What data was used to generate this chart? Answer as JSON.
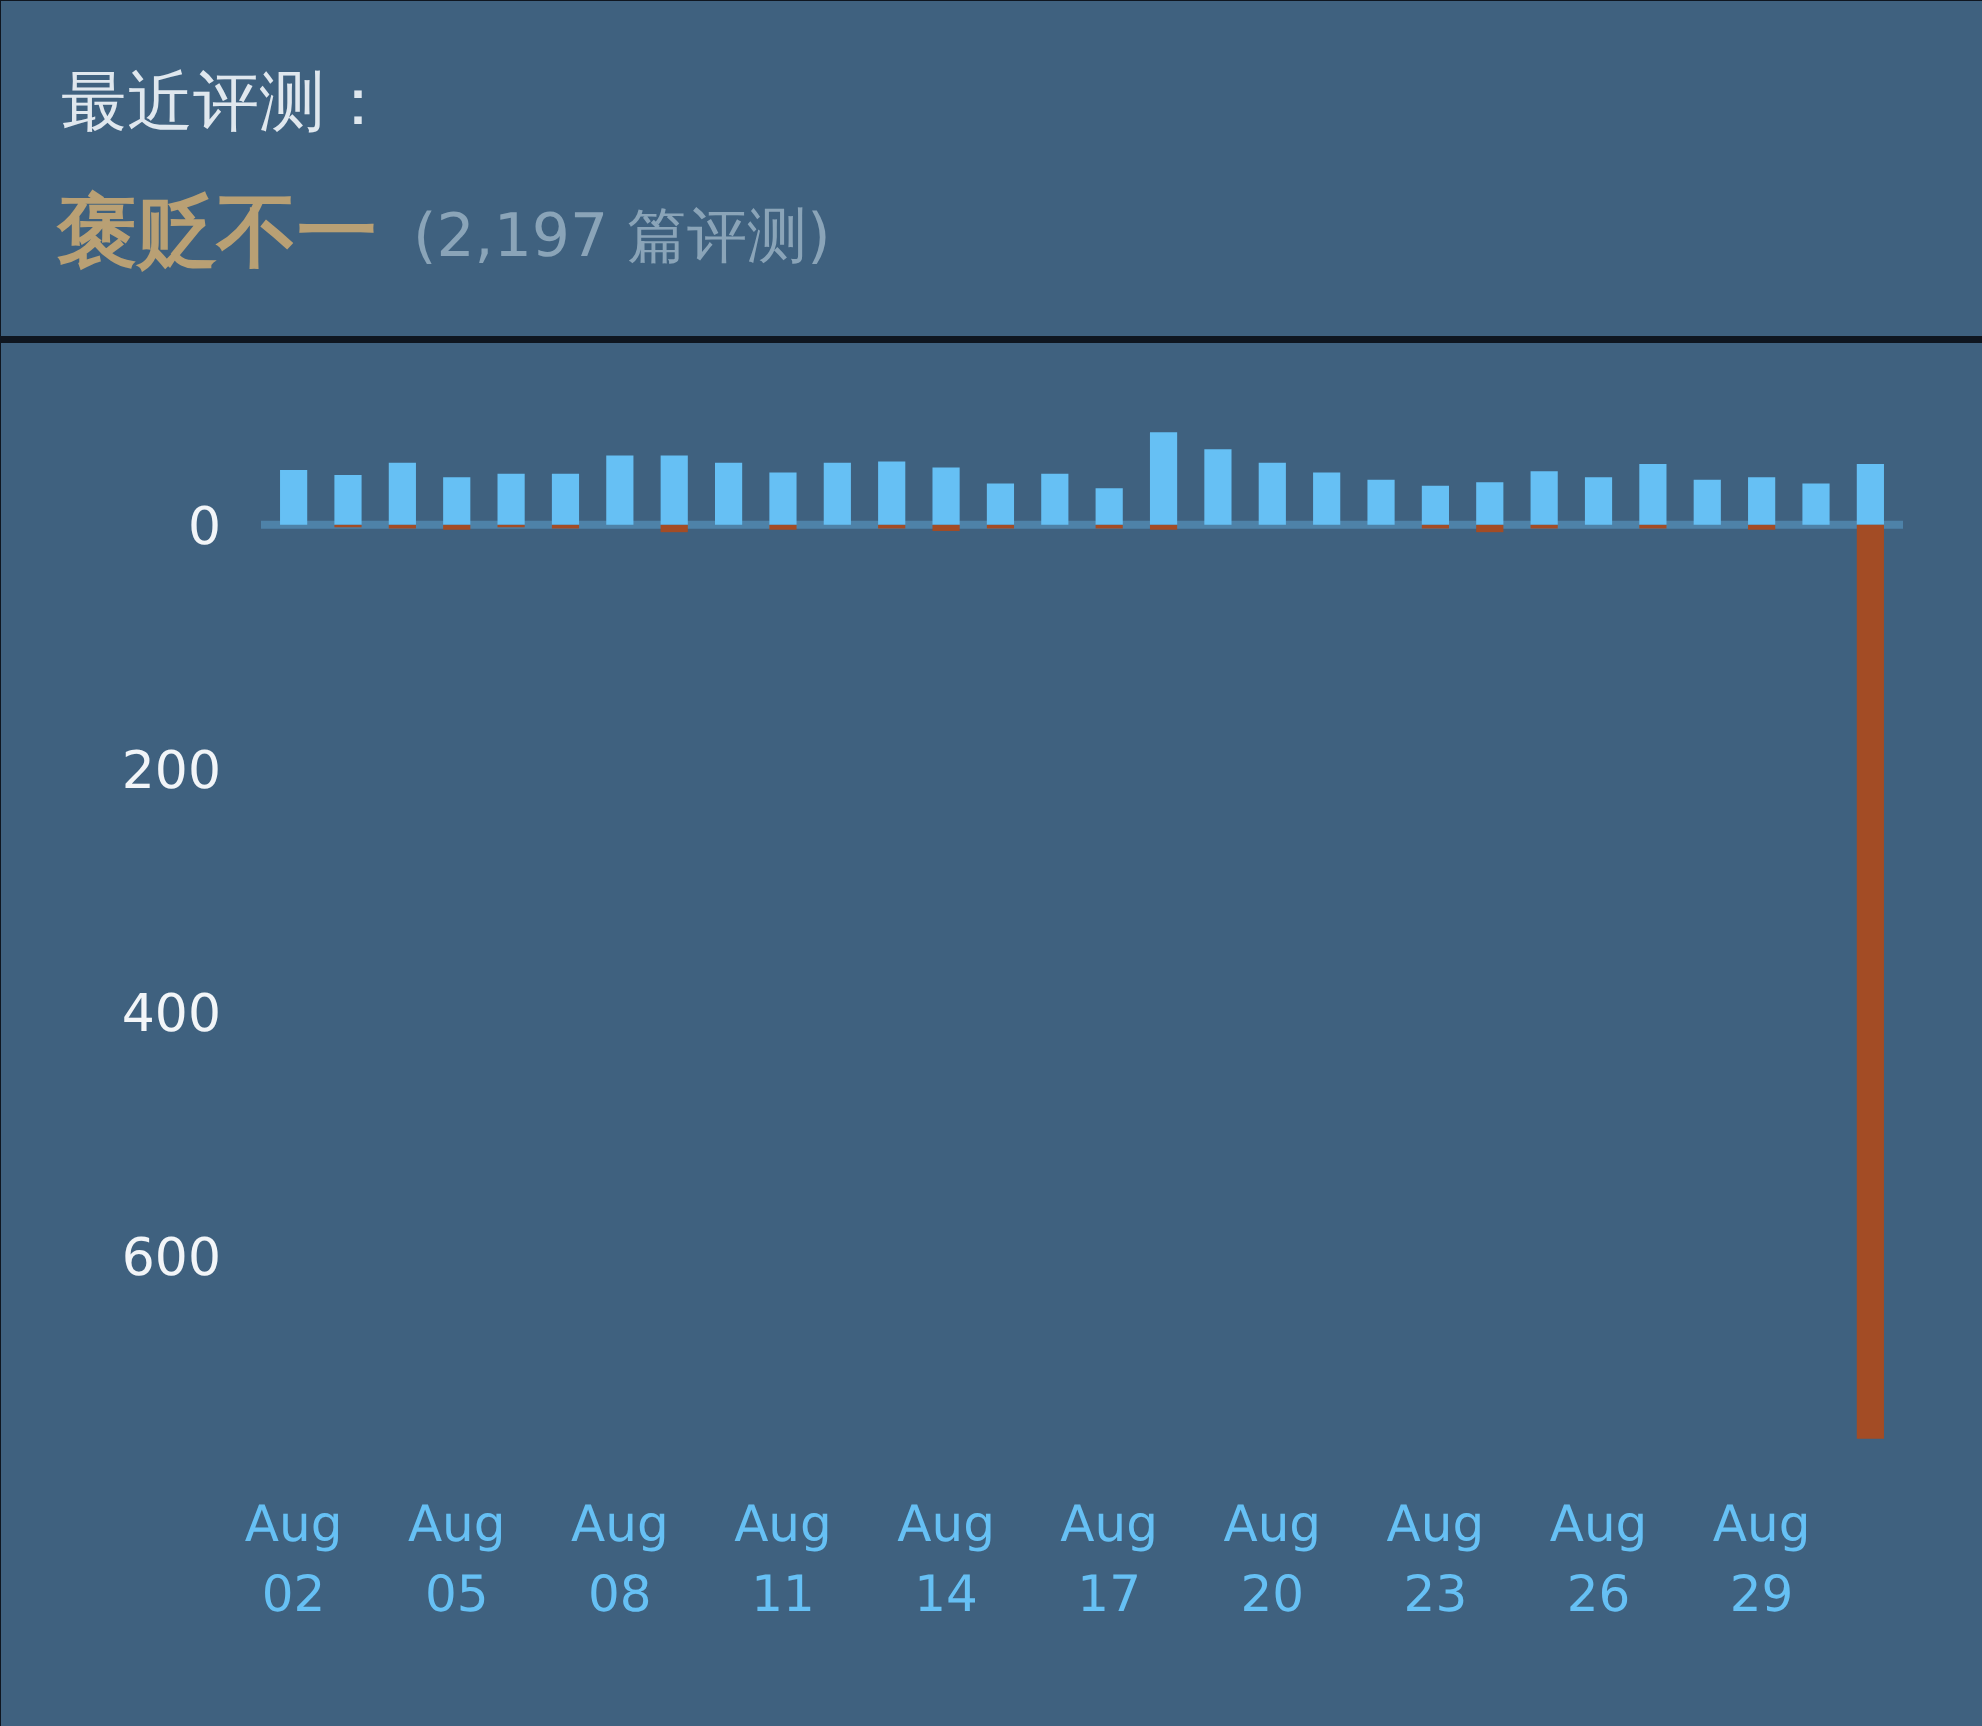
{
  "chart_data": {
    "type": "bar",
    "title": "最近评测：",
    "subtitle": "褒贬不一 (2,197 篇评测)",
    "categories": [
      "Aug 02",
      null,
      null,
      "Aug 05",
      null,
      null,
      "Aug 08",
      null,
      null,
      "Aug 11",
      null,
      null,
      "Aug 14",
      null,
      null,
      "Aug 17",
      null,
      null,
      "Aug 20",
      null,
      null,
      "Aug 23",
      null,
      null,
      "Aug 26",
      null,
      null,
      "Aug 29",
      null,
      null
    ],
    "series": [
      {
        "color": "#66c0f4",
        "values": [
          45,
          41,
          51,
          39,
          42,
          42,
          57,
          57,
          51,
          43,
          51,
          52,
          47,
          34,
          42,
          30,
          76,
          62,
          51,
          43,
          37,
          32,
          35,
          44,
          39,
          50,
          37,
          39,
          34,
          50
        ]
      },
      {
        "color": "#a34c25",
        "values": [
          0,
          -2,
          -3,
          -4,
          -2,
          -3,
          0,
          -6,
          0,
          -4,
          0,
          -3,
          -5,
          -3,
          0,
          -3,
          -4,
          0,
          0,
          0,
          0,
          -3,
          -6,
          -3,
          0,
          -3,
          0,
          -4,
          0,
          -750
        ]
      }
    ],
    "stacked": true,
    "ylim": [
      -760,
      100
    ],
    "yticks": [
      0,
      {
        "value": -200,
        "label": "200"
      },
      {
        "value": -400,
        "label": "400"
      },
      {
        "value": -600,
        "label": "600"
      }
    ],
    "ref_lines": [
      {
        "axis": "y",
        "value": 0,
        "color": "#4e82a8"
      }
    ]
  }
}
